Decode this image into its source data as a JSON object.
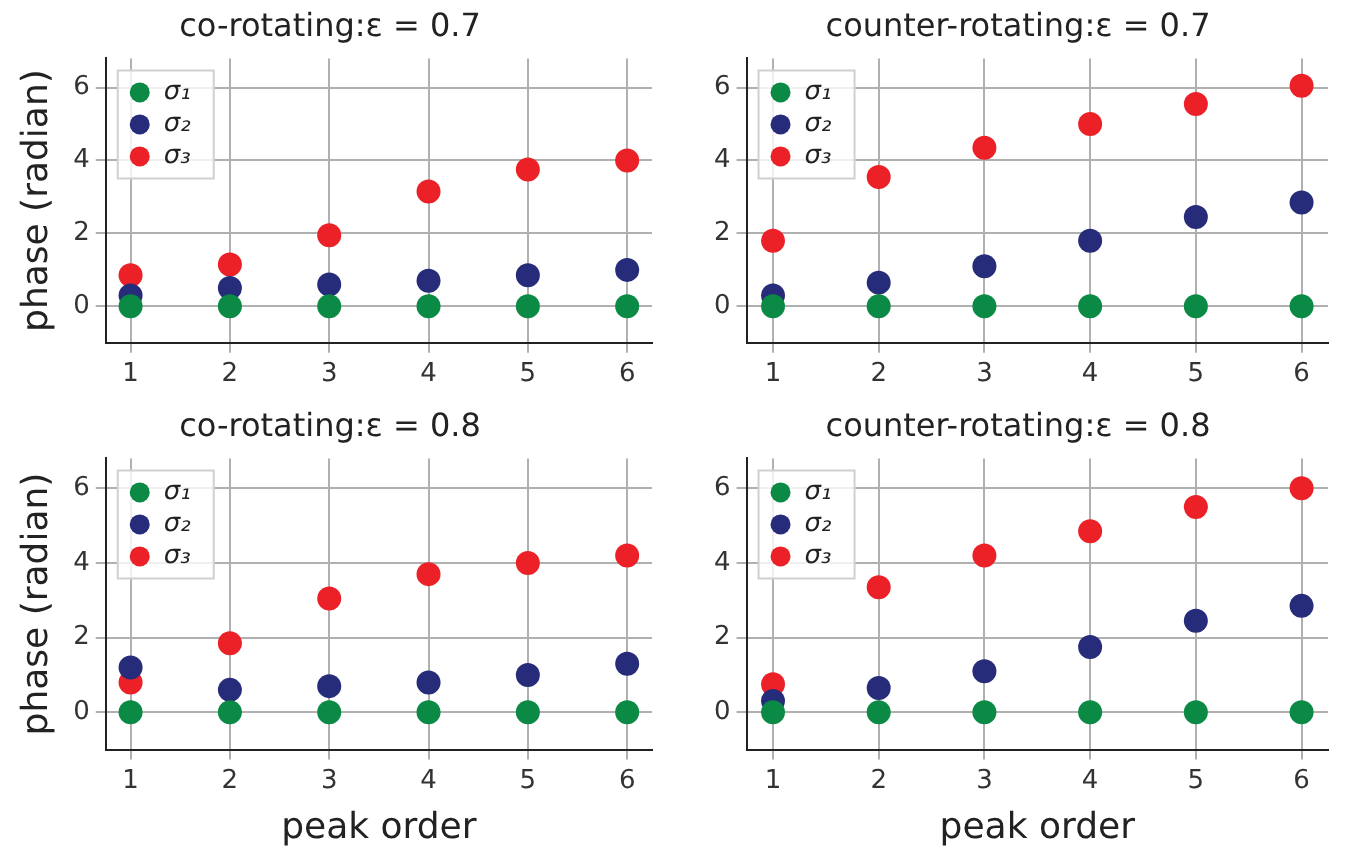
{
  "chart_data": [
    {
      "type": "scatter",
      "title": "co-rotating:ε = 0.7",
      "ylabel": "phase (radian)",
      "x": [
        1,
        2,
        3,
        4,
        5,
        6
      ],
      "xlim": [
        0.75,
        6.25
      ],
      "xticks": [
        1,
        2,
        3,
        4,
        5,
        6
      ],
      "ylim": [
        -1,
        6.8
      ],
      "yticks": [
        0,
        2,
        4,
        6
      ],
      "grid": true,
      "legend": "top left",
      "marker": "circle",
      "series": [
        {
          "name": "σ₁",
          "color": "#0a8a44",
          "values": [
            0,
            0,
            0,
            0,
            0,
            0
          ]
        },
        {
          "name": "σ₂",
          "color": "#262b7a",
          "values": [
            0.3,
            0.5,
            0.6,
            0.7,
            0.85,
            1.0
          ]
        },
        {
          "name": "σ₃",
          "color": "#ec2027",
          "values": [
            0.85,
            1.15,
            1.95,
            3.15,
            3.75,
            4.0
          ]
        }
      ]
    },
    {
      "type": "scatter",
      "title": "counter-rotating:ε = 0.7",
      "x": [
        1,
        2,
        3,
        4,
        5,
        6
      ],
      "xlim": [
        0.75,
        6.25
      ],
      "xticks": [
        1,
        2,
        3,
        4,
        5,
        6
      ],
      "ylim": [
        -1,
        6.8
      ],
      "yticks": [
        0,
        2,
        4,
        6
      ],
      "grid": true,
      "legend": "top left",
      "marker": "circle",
      "series": [
        {
          "name": "σ₁",
          "color": "#0a8a44",
          "values": [
            0,
            0,
            0,
            0,
            0,
            0
          ]
        },
        {
          "name": "σ₂",
          "color": "#262b7a",
          "values": [
            0.3,
            0.65,
            1.1,
            1.8,
            2.45,
            2.85
          ]
        },
        {
          "name": "σ₃",
          "color": "#ec2027",
          "values": [
            1.8,
            3.55,
            4.35,
            5.0,
            5.55,
            6.05
          ]
        }
      ]
    },
    {
      "type": "scatter",
      "title": "co-rotating:ε = 0.8",
      "xlabel": "peak order",
      "ylabel": "phase (radian)",
      "x": [
        1,
        2,
        3,
        4,
        5,
        6
      ],
      "xlim": [
        0.75,
        6.25
      ],
      "xticks": [
        1,
        2,
        3,
        4,
        5,
        6
      ],
      "ylim": [
        -1,
        6.8
      ],
      "yticks": [
        0,
        2,
        4,
        6
      ],
      "grid": true,
      "legend": "top left",
      "marker": "circle",
      "series": [
        {
          "name": "σ₁",
          "color": "#0a8a44",
          "values": [
            0,
            0,
            0,
            0,
            0,
            0
          ]
        },
        {
          "name": "σ₂",
          "color": "#262b7a",
          "values": [
            1.2,
            0.6,
            0.7,
            0.8,
            1.0,
            1.3
          ]
        },
        {
          "name": "σ₃",
          "color": "#ec2027",
          "values": [
            0.8,
            1.85,
            3.05,
            3.7,
            4.0,
            4.2
          ]
        }
      ]
    },
    {
      "type": "scatter",
      "title": "counter-rotating:ε = 0.8",
      "xlabel": "peak order",
      "x": [
        1,
        2,
        3,
        4,
        5,
        6
      ],
      "xlim": [
        0.75,
        6.25
      ],
      "xticks": [
        1,
        2,
        3,
        4,
        5,
        6
      ],
      "ylim": [
        -1,
        6.8
      ],
      "yticks": [
        0,
        2,
        4,
        6
      ],
      "grid": true,
      "legend": "top left",
      "marker": "circle",
      "series": [
        {
          "name": "σ₁",
          "color": "#0a8a44",
          "values": [
            0,
            0,
            0,
            0,
            0,
            0
          ]
        },
        {
          "name": "σ₂",
          "color": "#262b7a",
          "values": [
            0.3,
            0.65,
            1.1,
            1.75,
            2.45,
            2.85
          ]
        },
        {
          "name": "σ₃",
          "color": "#ec2027",
          "values": [
            0.75,
            3.35,
            4.2,
            4.85,
            5.5,
            6.0
          ]
        }
      ]
    }
  ]
}
